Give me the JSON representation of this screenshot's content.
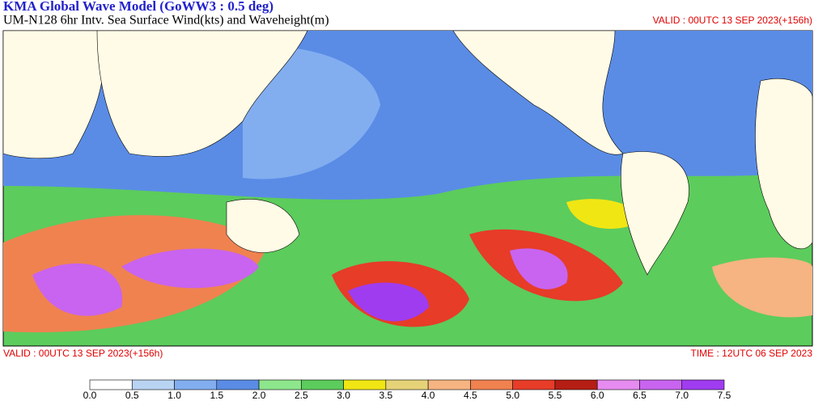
{
  "header": {
    "title": "KMA  Global Wave Model (GoWW3 : 0.5 deg)",
    "subtitle": "UM-N128  6hr Intv. Sea Surface Wind(kts) and Waveheight(m)",
    "valid": "VALID : 00UTC 13 SEP 2023(+156h)"
  },
  "footer": {
    "valid": "VALID : 00UTC 13 SEP 2023(+156h)",
    "time": "TIME : 12UTC 06 SEP 2023"
  },
  "colorbar": {
    "labels": [
      "0.0",
      "0.5",
      "1.0",
      "1.5",
      "2.0",
      "2.5",
      "3.0",
      "3.5",
      "4.0",
      "4.5",
      "5.0",
      "5.5",
      "6.0",
      "6.5",
      "7.0",
      "7.5"
    ],
    "colors": [
      "#ffffff",
      "#b9d3f2",
      "#82aef0",
      "#5a8ce6",
      "#8ee68c",
      "#5ccc5c",
      "#f0e614",
      "#e6d278",
      "#f5b482",
      "#f08250",
      "#e63c28",
      "#b41e14",
      "#e68cf0",
      "#c864f0",
      "#a03cf0"
    ]
  }
}
